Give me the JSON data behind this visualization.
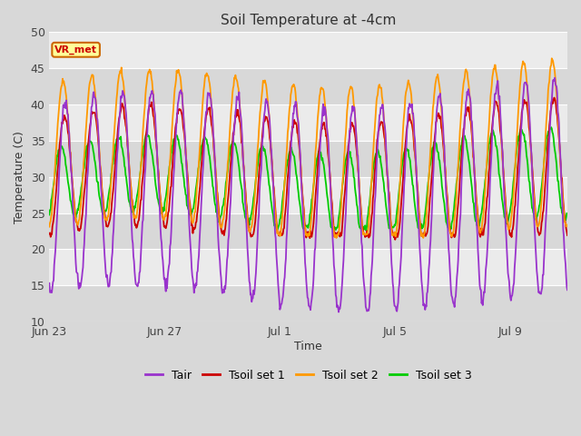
{
  "title": "Soil Temperature at -4cm",
  "xlabel": "Time",
  "ylabel": "Temperature (C)",
  "ylim": [
    10,
    50
  ],
  "yticks": [
    10,
    15,
    20,
    25,
    30,
    35,
    40,
    45,
    50
  ],
  "x_tick_labels": [
    "Jun 23",
    "Jun 27",
    "Jul 1",
    "Jul 5",
    "Jul 9"
  ],
  "x_tick_pos": [
    0,
    4,
    8,
    12,
    16
  ],
  "xlim": [
    0,
    18
  ],
  "n_days": 18,
  "colors": {
    "Tair": "#9933CC",
    "Tsoil1": "#CC0000",
    "Tsoil2": "#FF9900",
    "Tsoil3": "#00CC00"
  },
  "legend_labels": [
    "Tair",
    "Tsoil set 1",
    "Tsoil set 2",
    "Tsoil set 3"
  ],
  "fig_bg_color": "#D8D8D8",
  "plot_bg_light": "#EBEBEB",
  "plot_bg_dark": "#D8D8D8",
  "annotation_text": "VR_met",
  "annotation_color": "#CC0000",
  "annotation_bg": "#FFFF99",
  "annotation_border": "#CC6600"
}
